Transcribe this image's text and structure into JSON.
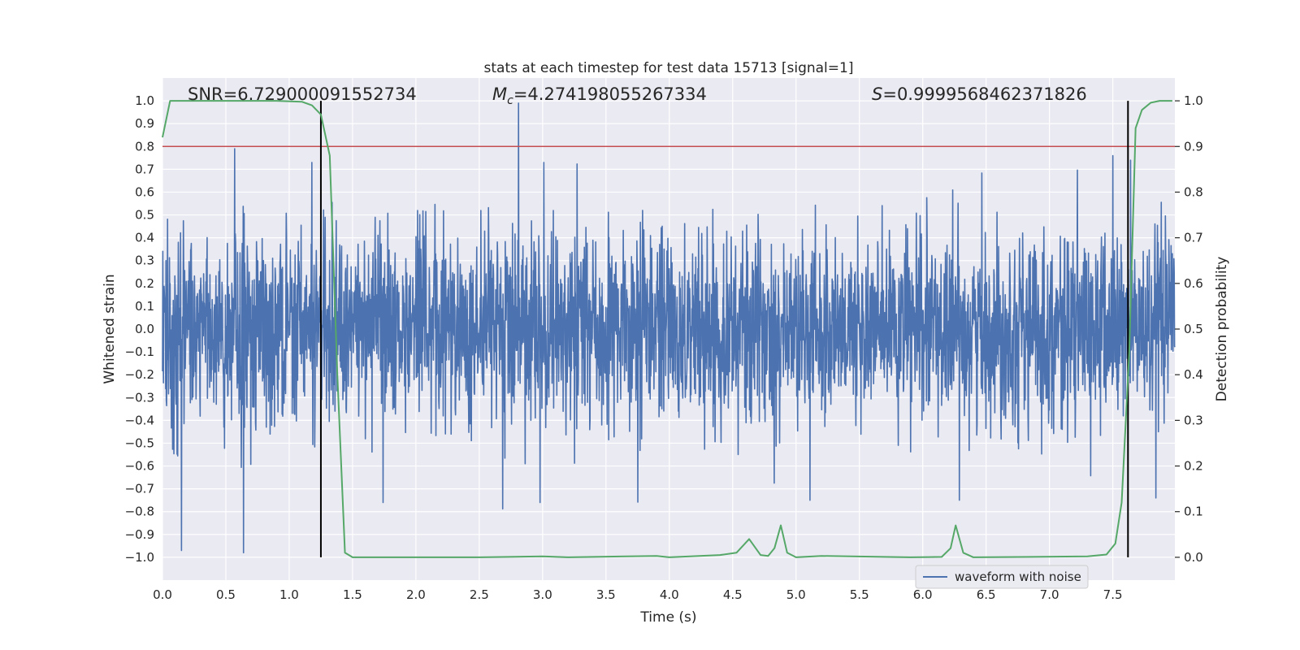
{
  "chart_data": {
    "type": "line",
    "title": "stats at each timestep for test data 15713 [signal=1]",
    "xlabel": "Time (s)",
    "ylabel": "Whitened strain",
    "ylabel_right": "Detection probability",
    "xlim": [
      0.0,
      7.99
    ],
    "ylim": [
      -1.1,
      1.1
    ],
    "ylim_right": [
      -0.05,
      1.05
    ],
    "x_ticks": [
      "0.0",
      "0.5",
      "1.0",
      "1.5",
      "2.0",
      "2.5",
      "3.0",
      "3.5",
      "4.0",
      "4.5",
      "5.0",
      "5.5",
      "6.0",
      "6.5",
      "7.0",
      "7.5"
    ],
    "y_ticks": [
      "1.0",
      "0.9",
      "0.8",
      "0.7",
      "0.6",
      "0.5",
      "0.4",
      "0.3",
      "0.2",
      "0.1",
      "0.0",
      "−0.1",
      "−0.2",
      "−0.3",
      "−0.4",
      "−0.5",
      "−0.6",
      "−0.7",
      "−0.8",
      "−0.9",
      "−1.0"
    ],
    "y_ticks_right": [
      "1.0",
      "0.9",
      "0.8",
      "0.7",
      "0.6",
      "0.5",
      "0.4",
      "0.3",
      "0.2",
      "0.1",
      "0.0"
    ],
    "grid": true,
    "legend_position": "bottom-right",
    "annotations": {
      "snr": "SNR=6.729000091552734",
      "mc_prefix": "M",
      "mc_sub": "c",
      "mc_value": "=4.274198055267334",
      "s_prefix": "S",
      "s_value": "=0.9999568462371826"
    },
    "threshold_right": 0.9,
    "vlines_x": [
      1.25,
      7.62
    ],
    "colors": {
      "waveform": "#4c72b0",
      "probability": "#55a868",
      "threshold": "#c44e52",
      "vline": "#000000",
      "background": "#eaeaf2"
    },
    "series": [
      {
        "name": "waveform with noise",
        "axis": "left",
        "envelope": {
          "x": [
            0.0,
            0.5,
            1.0,
            1.5,
            2.0,
            2.5,
            3.0,
            3.5,
            4.0,
            4.5,
            5.0,
            5.5,
            6.0,
            6.5,
            7.0,
            7.5,
            7.99
          ],
          "typical_amplitude": [
            0.33,
            0.33,
            0.33,
            0.33,
            0.33,
            0.33,
            0.33,
            0.33,
            0.33,
            0.33,
            0.33,
            0.33,
            0.33,
            0.33,
            0.33,
            0.33,
            0.33
          ]
        },
        "peaks": [
          {
            "x": 0.15,
            "y": -0.97
          },
          {
            "x": 0.57,
            "y": 0.79
          },
          {
            "x": 0.64,
            "y": -0.98
          },
          {
            "x": 1.18,
            "y": 0.73
          },
          {
            "x": 2.81,
            "y": 0.99
          },
          {
            "x": 2.98,
            "y": -0.76
          },
          {
            "x": 1.74,
            "y": -0.76
          },
          {
            "x": 3.01,
            "y": 0.73
          },
          {
            "x": 5.11,
            "y": -0.75
          },
          {
            "x": 7.5,
            "y": 0.76
          },
          {
            "x": 7.64,
            "y": 0.74
          },
          {
            "x": 7.84,
            "y": -0.74
          }
        ]
      },
      {
        "name": "",
        "axis": "right",
        "x": [
          0.0,
          0.06,
          0.15,
          0.5,
          0.9,
          1.1,
          1.18,
          1.25,
          1.32,
          1.38,
          1.44,
          1.5,
          1.7,
          2.5,
          3.0,
          3.2,
          3.9,
          4.0,
          4.4,
          4.53,
          4.63,
          4.72,
          4.78,
          4.83,
          4.88,
          4.93,
          5.0,
          5.2,
          5.9,
          6.15,
          6.22,
          6.26,
          6.32,
          6.4,
          7.3,
          7.45,
          7.52,
          7.57,
          7.63,
          7.68,
          7.73,
          7.8,
          7.87,
          7.97
        ],
        "y": [
          0.92,
          1.0,
          1.0,
          1.0,
          1.0,
          0.998,
          0.99,
          0.97,
          0.88,
          0.4,
          0.01,
          0.0,
          0.0,
          0.0,
          0.002,
          0.0,
          0.003,
          0.0,
          0.005,
          0.01,
          0.04,
          0.005,
          0.003,
          0.02,
          0.07,
          0.01,
          0.0,
          0.003,
          0.0,
          0.001,
          0.02,
          0.07,
          0.01,
          0.0,
          0.002,
          0.006,
          0.03,
          0.12,
          0.45,
          0.94,
          0.98,
          0.996,
          1.0,
          1.0
        ]
      }
    ]
  }
}
